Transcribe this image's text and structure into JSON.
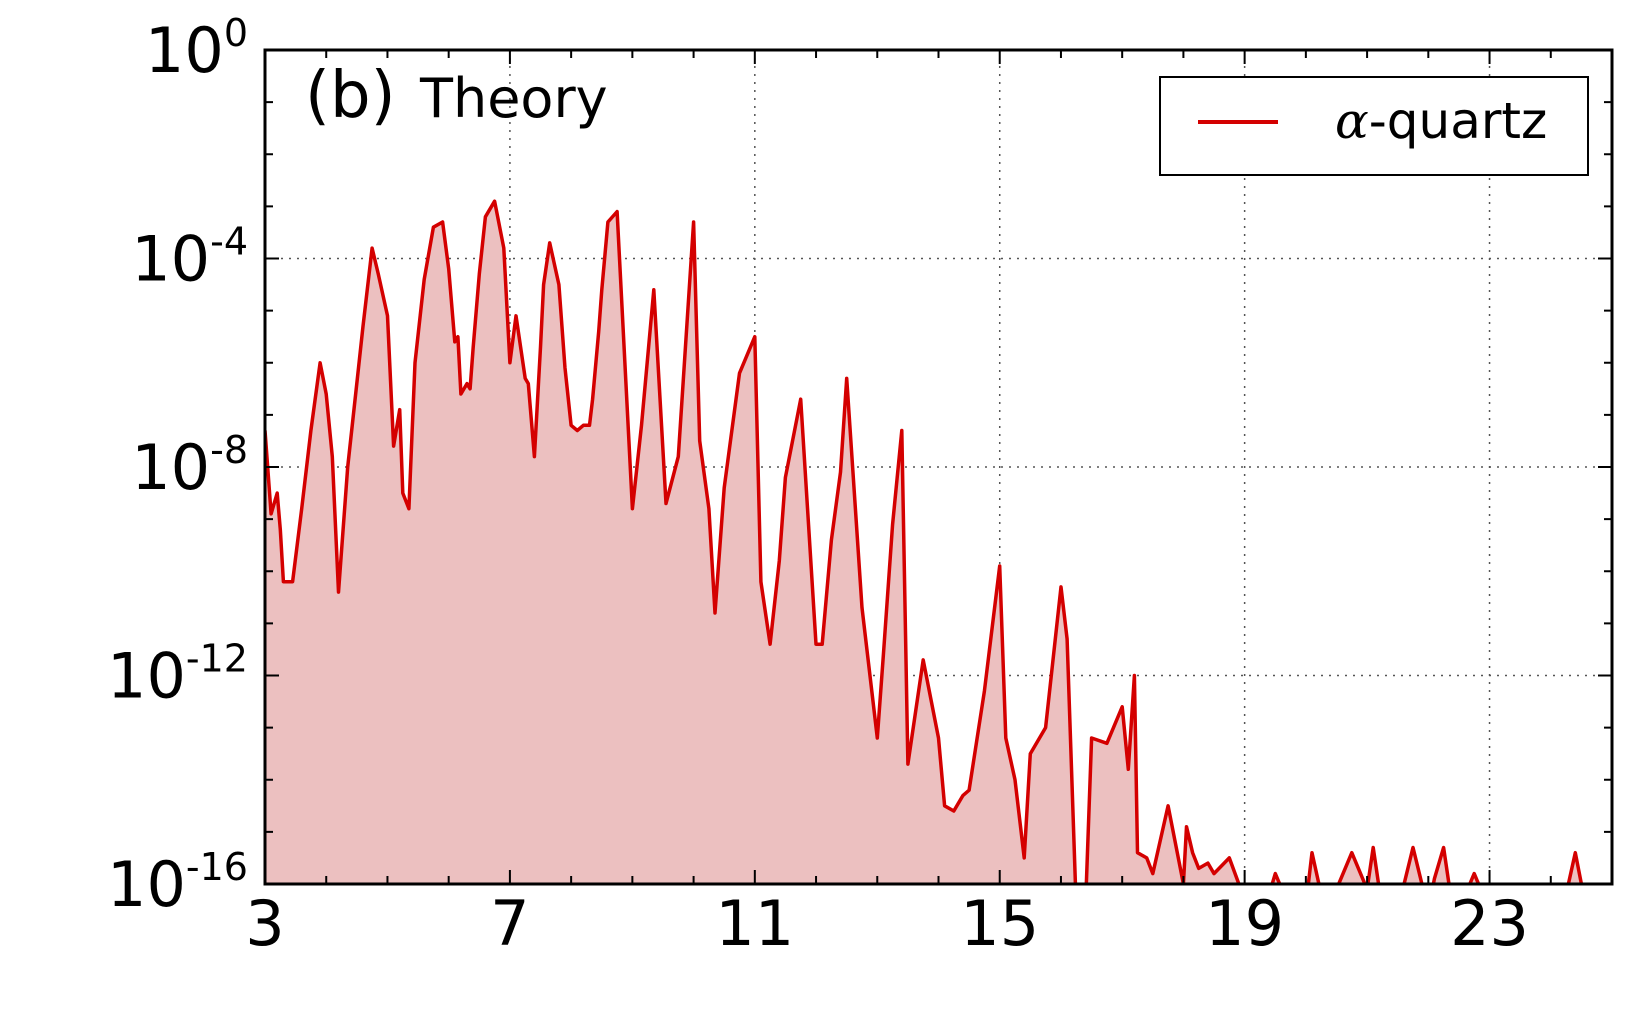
{
  "chart_data": {
    "type": "area",
    "panel_label": "(b)",
    "title": "Theory",
    "xlabel": "",
    "ylabel": "",
    "xlim": [
      3,
      25
    ],
    "ylim_log10": [
      -16,
      0
    ],
    "y_scale": "log",
    "x_ticks": [
      "3",
      "7",
      "11",
      "15",
      "19",
      "23"
    ],
    "y_ticks": [
      {
        "base": "10",
        "exp": "0"
      },
      {
        "base": "10",
        "exp": "-4"
      },
      {
        "base": "10",
        "exp": "-8"
      },
      {
        "base": "10",
        "exp": "-12"
      },
      {
        "base": "10",
        "exp": "-16"
      }
    ],
    "grid": true,
    "legend": {
      "position": "top-right",
      "symbol": "α",
      "text": "-quartz"
    },
    "colors": {
      "line": "#d40000",
      "fill": "#ecc0c0"
    },
    "series": [
      {
        "name": "α-quartz",
        "x": [
          3.0,
          3.1,
          3.2,
          3.25,
          3.3,
          3.45,
          3.6,
          3.75,
          3.9,
          4.0,
          4.1,
          4.2,
          4.35,
          4.5,
          4.6,
          4.75,
          4.85,
          5.0,
          5.1,
          5.2,
          5.25,
          5.35,
          5.45,
          5.6,
          5.75,
          5.9,
          6.0,
          6.1,
          6.15,
          6.2,
          6.3,
          6.35,
          6.4,
          6.5,
          6.6,
          6.75,
          6.9,
          7.0,
          7.1,
          7.25,
          7.3,
          7.4,
          7.5,
          7.55,
          7.65,
          7.8,
          7.9,
          8.0,
          8.1,
          8.2,
          8.3,
          8.35,
          8.45,
          8.5,
          8.6,
          8.75,
          9.0,
          9.15,
          9.35,
          9.55,
          9.75,
          10.0,
          10.1,
          10.25,
          10.35,
          10.5,
          10.75,
          11.0,
          11.1,
          11.25,
          11.4,
          11.5,
          11.75,
          12.0,
          12.1,
          12.25,
          12.4,
          12.5,
          12.75,
          13.0,
          13.1,
          13.25,
          13.4,
          13.5,
          13.75,
          14.0,
          14.1,
          14.25,
          14.4,
          14.5,
          14.75,
          15.0,
          15.1,
          15.25,
          15.4,
          15.5,
          15.75,
          16.0,
          16.1,
          16.25,
          16.4,
          16.5,
          16.75,
          17.0,
          17.1,
          17.2,
          17.25,
          17.4,
          17.5,
          17.75,
          18.0,
          18.05,
          18.15,
          18.25,
          18.4,
          18.5,
          18.75,
          19.0,
          19.1,
          19.25,
          19.4,
          19.5,
          19.75,
          20.0,
          20.1,
          20.25,
          20.4,
          20.5,
          20.75,
          21.0,
          21.1,
          21.25,
          21.4,
          21.5,
          21.75,
          22.0,
          22.1,
          22.25,
          22.4,
          22.5,
          22.75,
          23.0,
          23.1,
          23.25,
          23.4,
          23.5,
          23.75,
          24.0,
          24.1,
          24.25,
          24.4,
          24.5,
          24.75,
          25.0
        ],
        "log10_y": [
          -7.3,
          -8.9,
          -8.5,
          -9.2,
          -10.2,
          -10.2,
          -8.8,
          -7.3,
          -6.0,
          -6.6,
          -7.8,
          -10.4,
          -8.0,
          -6.4,
          -5.3,
          -3.8,
          -4.3,
          -5.1,
          -7.6,
          -6.9,
          -8.5,
          -8.8,
          -6.0,
          -4.4,
          -3.4,
          -3.3,
          -4.2,
          -5.6,
          -5.5,
          -6.6,
          -6.4,
          -6.5,
          -5.7,
          -4.3,
          -3.2,
          -2.9,
          -3.8,
          -6.0,
          -5.1,
          -6.3,
          -6.4,
          -7.8,
          -5.7,
          -4.5,
          -3.7,
          -4.5,
          -6.1,
          -7.2,
          -7.3,
          -7.2,
          -7.2,
          -6.7,
          -5.4,
          -4.6,
          -3.3,
          -3.1,
          -8.8,
          -7.2,
          -4.6,
          -8.7,
          -7.8,
          -3.3,
          -7.5,
          -8.8,
          -10.8,
          -8.4,
          -6.2,
          -5.5,
          -10.2,
          -11.4,
          -9.8,
          -8.2,
          -6.7,
          -11.4,
          -11.4,
          -9.4,
          -8.1,
          -6.3,
          -10.7,
          -13.2,
          -11.6,
          -9.1,
          -7.3,
          -13.7,
          -11.7,
          -13.2,
          -14.5,
          -14.6,
          -14.3,
          -14.2,
          -12.3,
          -9.9,
          -13.2,
          -14.0,
          -15.5,
          -13.5,
          -13.0,
          -10.3,
          -11.3,
          -16.8,
          -16.8,
          -13.2,
          -13.3,
          -12.6,
          -13.8,
          -12.0,
          -15.4,
          -15.5,
          -15.8,
          -14.5,
          -16.0,
          -14.9,
          -15.4,
          -15.7,
          -15.6,
          -15.8,
          -15.5,
          -16.3,
          -17.0,
          -16.4,
          -16.2,
          -15.8,
          -16.7,
          -16.4,
          -15.4,
          -16.2,
          -16.1,
          -16.1,
          -15.4,
          -16.1,
          -15.3,
          -16.7,
          -16.2,
          -16.7,
          -15.3,
          -16.8,
          -15.9,
          -15.3,
          -17.0,
          -16.6,
          -15.8,
          -16.8,
          -16.2,
          -16.2,
          -17.0,
          -16.8,
          -16.4,
          -16.6,
          -16.6,
          -16.2,
          -15.4,
          -16.0,
          -16.8,
          -16.9,
          -16.8,
          -16.8,
          -16.8,
          -16.8,
          -16.8
        ]
      }
    ]
  }
}
